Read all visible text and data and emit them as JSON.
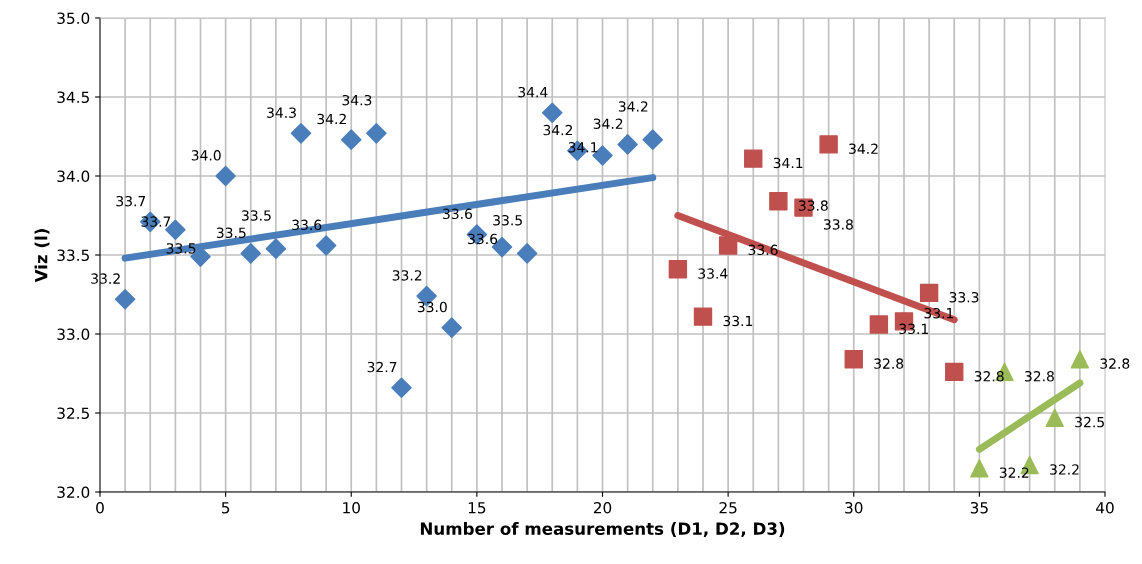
{
  "chart_data": {
    "type": "scatter",
    "xlabel": "Number of measurements (D1, D2, D3)",
    "ylabel": "Viz (l)",
    "xlim": [
      0,
      40
    ],
    "xticks": [
      0,
      5,
      10,
      15,
      20,
      25,
      30,
      35,
      40
    ],
    "ylim": [
      32.0,
      35.0
    ],
    "yticks": [
      {
        "value": 32.0,
        "label": "32.0"
      },
      {
        "value": 32.5,
        "label": "32.5"
      },
      {
        "value": 33.0,
        "label": "33.0"
      },
      {
        "value": 33.5,
        "label": "33.5"
      },
      {
        "value": 34.0,
        "label": "34.0"
      },
      {
        "value": 34.5,
        "label": "34.5"
      },
      {
        "value": 35.0,
        "label": "35.0"
      }
    ],
    "grid": true,
    "series": [
      {
        "marker": "diamond",
        "color": "#4a7ebb",
        "x": [
          1,
          2,
          3,
          4,
          5,
          6,
          7,
          8,
          9,
          10,
          11,
          12,
          13,
          14,
          15,
          16,
          17,
          18,
          19,
          20,
          21,
          22
        ],
        "values": [
          33.22,
          33.71,
          33.66,
          33.49,
          34.0,
          33.51,
          33.54,
          34.27,
          33.56,
          34.23,
          34.27,
          32.66,
          33.24,
          33.04,
          33.63,
          33.55,
          33.51,
          34.4,
          34.16,
          34.13,
          34.2,
          34.23
        ],
        "value_labels": [
          "33.2",
          "33.7",
          "33.7",
          "33.5",
          "34.0",
          "33.5",
          "33.5",
          "34.3",
          "33.6",
          "34.2",
          "34.3",
          "32.7",
          "33.2",
          "33.0",
          "33.6",
          "33.6",
          "33.5",
          "34.4",
          "34.2",
          "34.1",
          "34.2",
          "34.2"
        ]
      },
      {
        "marker": "square",
        "color": "#c0504d",
        "x": [
          23,
          24,
          25,
          26,
          27,
          28,
          29,
          30,
          31,
          32,
          33,
          34
        ],
        "values": [
          33.41,
          33.11,
          33.56,
          34.11,
          33.84,
          33.8,
          34.2,
          32.84,
          33.06,
          33.08,
          33.26,
          32.76
        ],
        "value_labels": [
          "33.4",
          "33.1",
          "33.6",
          "34.1",
          "33.8",
          "33.8",
          "34.2",
          "32.8",
          "33.1",
          "33.1",
          "33.3",
          "32.8"
        ]
      },
      {
        "marker": "triangle",
        "color": "#9bbb59",
        "x": [
          35,
          36,
          37,
          38,
          39
        ],
        "values": [
          32.15,
          32.76,
          32.17,
          32.47,
          32.84
        ],
        "value_labels": [
          "32.2",
          "32.8",
          "32.2",
          "32.5",
          "32.8"
        ]
      },
      {
        "type": "line",
        "color": "#4a7ebb",
        "x": [
          1,
          22
        ],
        "values": [
          33.48,
          33.99
        ]
      },
      {
        "type": "line",
        "color": "#c0504d",
        "x": [
          23,
          34
        ],
        "values": [
          33.75,
          33.09
        ]
      },
      {
        "type": "line",
        "color": "#9bbb59",
        "x": [
          35,
          39
        ],
        "values": [
          32.27,
          32.69
        ]
      }
    ]
  }
}
